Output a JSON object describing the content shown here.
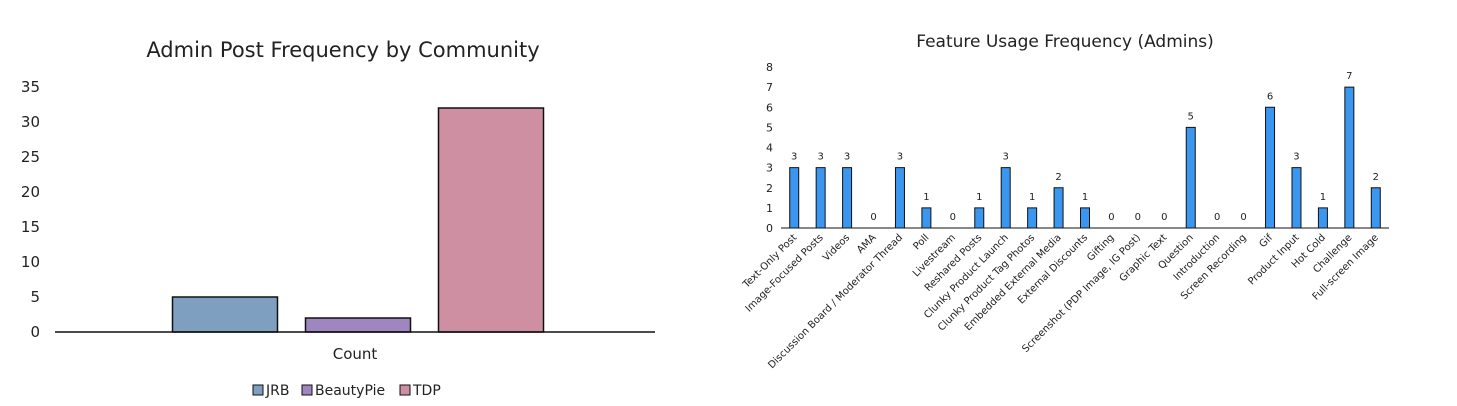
{
  "chart_data": [
    {
      "type": "bar",
      "title": "Admin Post Frequency by Community",
      "xlabel": "",
      "ylabel": "",
      "categories": [
        "Count"
      ],
      "series": [
        {
          "name": "JRB",
          "values": [
            5
          ],
          "color": "#7f9fc1"
        },
        {
          "name": "BeautyPie",
          "values": [
            2
          ],
          "color": "#9f86c0"
        },
        {
          "name": "TDP",
          "values": [
            32
          ],
          "color": "#cf8fa3"
        }
      ],
      "ylim": [
        0,
        35
      ],
      "yticks": [
        "0",
        "5",
        "10",
        "15",
        "20",
        "25",
        "30",
        "35"
      ],
      "grid": false,
      "legend": "bottom"
    },
    {
      "type": "bar",
      "title": "Feature Usage Frequency (Admins)",
      "xlabel": "",
      "ylabel": "",
      "categories": [
        "Text-Only Post",
        "Image-Focused Posts",
        "Videos",
        "AMA",
        "Discussion Board / Moderator Thread",
        "Poll",
        "Livestream",
        "Reshared Posts",
        "Clunky Product Launch",
        "Clunky Product Tag Photos",
        "Embedded External Media",
        "External Discounts",
        "Gifting",
        "Screenshot (PDP Image, IG Post)",
        "Graphic Text",
        "Question",
        "Introduction",
        "Screen Recording",
        "Gif",
        "Product Input",
        "Hot Cold",
        "Challenge",
        "Full-screen Image"
      ],
      "values": [
        3,
        3,
        3,
        0,
        3,
        1,
        0,
        1,
        3,
        1,
        2,
        1,
        0,
        0,
        0,
        5,
        0,
        0,
        6,
        3,
        1,
        7,
        2
      ],
      "data_labels": [
        "3",
        "3",
        "3",
        "0",
        "3",
        "1",
        "0",
        "1",
        "3",
        "1",
        "2",
        "1",
        "0",
        "0",
        "0",
        "5",
        "0",
        "0",
        "6",
        "3",
        "1",
        "7",
        "2"
      ],
      "color": "#3b96f0",
      "ylim": [
        0,
        8
      ],
      "yticks": [
        "0",
        "1",
        "2",
        "3",
        "4",
        "5",
        "6",
        "7",
        "8"
      ],
      "grid": false,
      "legend": "none"
    }
  ]
}
